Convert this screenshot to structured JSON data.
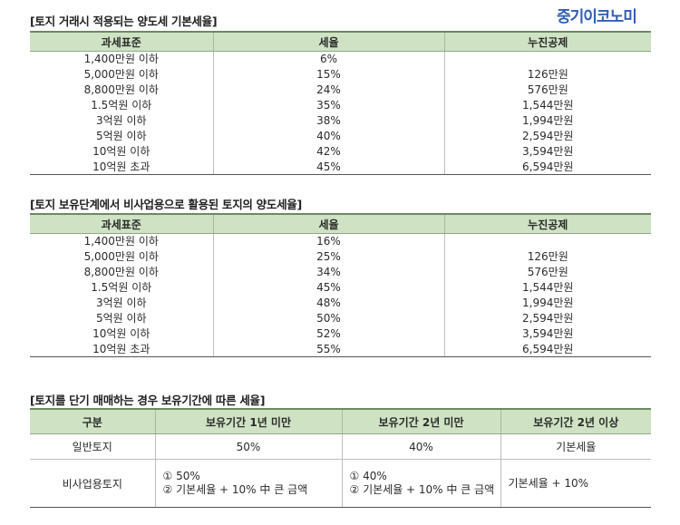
{
  "brand": "중기이코노미",
  "section1": {
    "title": "[토지 거래시 적용되는 양도세 기본세율]",
    "headers": [
      "과세표준",
      "세율",
      "누진공제"
    ],
    "rows": [
      [
        "1,400만원 이하",
        "6%",
        ""
      ],
      [
        "5,000만원 이하",
        "15%",
        "126만원"
      ],
      [
        "8,800만원 이하",
        "24%",
        "576만원"
      ],
      [
        "1.5억원 이하",
        "35%",
        "1,544만원"
      ],
      [
        "3억원 이하",
        "38%",
        "1,994만원"
      ],
      [
        "5억원 이하",
        "40%",
        "2,594만원"
      ],
      [
        "10억원 이하",
        "42%",
        "3,594만원"
      ],
      [
        "10억원 초과",
        "45%",
        "6,594만원"
      ]
    ]
  },
  "section2": {
    "title": "[토지 보유단계에서 비사업용으로 활용된 토지의 양도세율]",
    "headers": [
      "과세표준",
      "세율",
      "누진공제"
    ],
    "rows": [
      [
        "1,400만원 이하",
        "16%",
        ""
      ],
      [
        "5,000만원 이하",
        "25%",
        "126만원"
      ],
      [
        "8,800만원 이하",
        "34%",
        "576만원"
      ],
      [
        "1.5억원 이하",
        "45%",
        "1,544만원"
      ],
      [
        "3억원 이하",
        "48%",
        "1,994만원"
      ],
      [
        "5억원 이하",
        "50%",
        "2,594만원"
      ],
      [
        "10억원 이하",
        "52%",
        "3,594만원"
      ],
      [
        "10억원 초과",
        "55%",
        "6,594만원"
      ]
    ]
  },
  "section3": {
    "title": "[토지를 단기 매매하는 경우 보유기간에 따른 세율]",
    "headers": [
      "구분",
      "보유기간 1년 미만",
      "보유기간 2년 미만",
      "보유기간 2년 이상"
    ],
    "general": {
      "label": "일반토지",
      "under1": "50%",
      "under2": "40%",
      "over2": "기본세율"
    },
    "nonbusiness": {
      "label": "비사업용토지",
      "under1_line1": "① 50%",
      "under1_line2": "② 기본세율 + 10% 中 큰 금액",
      "under2_line1": "① 40%",
      "under2_line2": "② 기본세율 + 10% 中 큰 금액",
      "over2": "기본세율 + 10%"
    }
  }
}
